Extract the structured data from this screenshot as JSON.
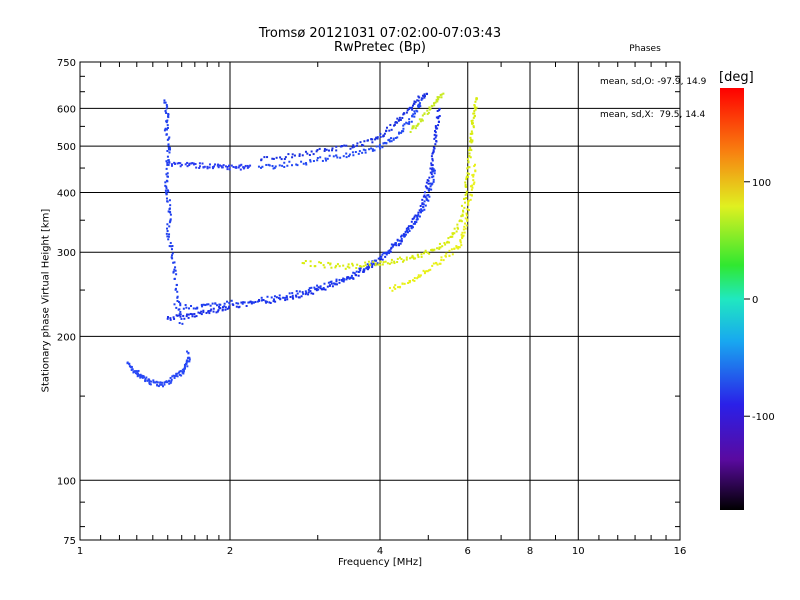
{
  "chart_data": {
    "type": "scatter",
    "title": "Tromsø 20121031 07:02:00-07:03:43",
    "subtitle": "RwPretec (Bp)",
    "xlabel": "Frequency [MHz]",
    "ylabel": "Stationary phase Virtual Height [km]",
    "x_scale": "log",
    "y_scale": "log",
    "xlim": [
      1,
      16
    ],
    "ylim": [
      75,
      750
    ],
    "x_ticks": [
      1,
      2,
      4,
      6,
      8,
      10,
      16
    ],
    "x_tick_labels": [
      "1",
      "2",
      "4",
      "6",
      "8",
      "10",
      "16"
    ],
    "x_minor_ticks": [
      1.1,
      1.2,
      1.3,
      1.4,
      1.5,
      1.6,
      1.7,
      1.8,
      1.9,
      3,
      5,
      7,
      9,
      11,
      12,
      13,
      14,
      15
    ],
    "y_ticks": [
      75,
      100,
      200,
      300,
      400,
      500,
      600,
      750
    ],
    "y_tick_labels": [
      "75",
      "100",
      "200",
      "300",
      "400",
      "500",
      "600",
      "750"
    ],
    "y_minor_ticks": [
      80,
      90,
      150,
      250,
      350,
      450,
      550,
      650,
      700
    ],
    "grid": true,
    "phase_info": {
      "title": "Phases",
      "line_o": "mean, sd,O: -97.9, 14.9",
      "line_x": "mean, sd,X:  79.5, 14.4"
    },
    "colorbar": {
      "label": "[deg]",
      "range": [
        -180,
        180
      ],
      "ticks": [
        100,
        0,
        -100
      ],
      "tick_labels": [
        "100",
        "0",
        "-100"
      ],
      "colormap": "rainbow (black-purple-blue-cyan-green-yellow-red)"
    },
    "series": [
      {
        "phase": -100,
        "color": "#1a2ee8",
        "trace": "O-mode lower branch",
        "points": [
          [
            1.5,
            218
          ],
          [
            1.6,
            220
          ],
          [
            1.7,
            222
          ],
          [
            1.8,
            225
          ],
          [
            1.9,
            228
          ],
          [
            2.0,
            231
          ],
          [
            2.2,
            234
          ],
          [
            2.4,
            237
          ],
          [
            2.6,
            241
          ],
          [
            2.8,
            245
          ],
          [
            3.0,
            250
          ],
          [
            3.2,
            255
          ],
          [
            3.4,
            262
          ],
          [
            3.6,
            270
          ],
          [
            3.8,
            279
          ],
          [
            4.0,
            289
          ],
          [
            4.2,
            302
          ],
          [
            4.4,
            318
          ],
          [
            4.6,
            338
          ],
          [
            4.8,
            366
          ],
          [
            4.95,
            400
          ],
          [
            5.05,
            440
          ],
          [
            5.12,
            480
          ],
          [
            5.18,
            520
          ],
          [
            5.22,
            560
          ],
          [
            5.25,
            600
          ]
        ]
      },
      {
        "phase": -100,
        "color": "#1e3ef0",
        "trace": "O-mode upper branch",
        "points": [
          [
            1.55,
            232
          ],
          [
            1.7,
            230
          ],
          [
            1.85,
            232
          ],
          [
            2.0,
            235
          ],
          [
            2.3,
            238
          ],
          [
            2.6,
            243
          ],
          [
            2.9,
            250
          ],
          [
            3.2,
            258
          ],
          [
            3.5,
            268
          ],
          [
            3.8,
            282
          ],
          [
            4.1,
            298
          ],
          [
            4.4,
            318
          ],
          [
            4.6,
            336
          ],
          [
            4.75,
            352
          ],
          [
            4.9,
            372
          ],
          [
            5.0,
            395
          ],
          [
            5.1,
            425
          ],
          [
            5.15,
            455
          ]
        ]
      },
      {
        "phase": -100,
        "color": "#2248f2",
        "trace": "F2 cusp lower",
        "points": [
          [
            2.3,
            450
          ],
          [
            2.5,
            455
          ],
          [
            2.8,
            462
          ],
          [
            3.1,
            470
          ],
          [
            3.4,
            478
          ],
          [
            3.7,
            487
          ],
          [
            4.0,
            497
          ],
          [
            4.2,
            512
          ],
          [
            4.4,
            535
          ],
          [
            4.6,
            565
          ],
          [
            4.75,
            600
          ],
          [
            4.85,
            625
          ]
        ]
      },
      {
        "phase": -100,
        "color": "#1a30e0",
        "trace": "F2 cusp upper",
        "points": [
          [
            2.3,
            470
          ],
          [
            2.6,
            476
          ],
          [
            2.9,
            484
          ],
          [
            3.2,
            492
          ],
          [
            3.5,
            500
          ],
          [
            3.8,
            510
          ],
          [
            4.0,
            522
          ],
          [
            4.2,
            545
          ],
          [
            4.4,
            570
          ],
          [
            4.6,
            600
          ],
          [
            4.8,
            630
          ],
          [
            5.0,
            640
          ]
        ]
      },
      {
        "phase": -100,
        "color": "#2a3cf0",
        "trace": "Es trace",
        "points": [
          [
            1.5,
            460
          ],
          [
            1.6,
            458
          ],
          [
            1.7,
            456
          ],
          [
            1.8,
            454
          ],
          [
            1.9,
            452
          ],
          [
            2.0,
            450
          ],
          [
            2.1,
            452
          ],
          [
            2.2,
            456
          ]
        ]
      },
      {
        "phase": -100,
        "color": "#2040ee",
        "trace": "vertical spread near 1.5 MHz",
        "points": [
          [
            1.48,
            620
          ],
          [
            1.5,
            580
          ],
          [
            1.49,
            540
          ],
          [
            1.51,
            500
          ],
          [
            1.5,
            460
          ],
          [
            1.49,
            420
          ],
          [
            1.5,
            390
          ],
          [
            1.52,
            360
          ],
          [
            1.5,
            330
          ],
          [
            1.53,
            300
          ],
          [
            1.55,
            270
          ],
          [
            1.57,
            240
          ],
          [
            1.6,
            210
          ]
        ]
      },
      {
        "phase": -100,
        "color": "#2848f5",
        "trace": "low-height cluster",
        "points": [
          [
            1.25,
            175
          ],
          [
            1.28,
            170
          ],
          [
            1.3,
            168
          ],
          [
            1.33,
            165
          ],
          [
            1.36,
            162
          ],
          [
            1.4,
            160
          ],
          [
            1.45,
            158
          ],
          [
            1.5,
            160
          ],
          [
            1.55,
            165
          ],
          [
            1.6,
            168
          ],
          [
            1.62,
            172
          ],
          [
            1.65,
            178
          ],
          [
            1.65,
            185
          ]
        ]
      },
      {
        "phase": 80,
        "color": "#d8ec10",
        "trace": "X-mode lower branch",
        "points": [
          [
            2.8,
            285
          ],
          [
            3.1,
            282
          ],
          [
            3.4,
            280
          ],
          [
            3.7,
            282
          ],
          [
            4.0,
            285
          ],
          [
            4.3,
            288
          ],
          [
            4.6,
            292
          ],
          [
            4.9,
            298
          ],
          [
            5.2,
            305
          ],
          [
            5.5,
            318
          ],
          [
            5.7,
            335
          ],
          [
            5.85,
            360
          ],
          [
            5.95,
            400
          ],
          [
            6.0,
            440
          ],
          [
            6.05,
            480
          ],
          [
            6.1,
            520
          ],
          [
            6.15,
            560
          ],
          [
            6.2,
            600
          ],
          [
            6.25,
            640
          ]
        ]
      },
      {
        "phase": 80,
        "color": "#e8f018",
        "trace": "X-mode upper branch",
        "points": [
          [
            4.2,
            250
          ],
          [
            4.5,
            258
          ],
          [
            4.8,
            268
          ],
          [
            5.1,
            280
          ],
          [
            5.4,
            292
          ],
          [
            5.7,
            305
          ],
          [
            5.85,
            320
          ],
          [
            5.95,
            345
          ],
          [
            6.05,
            380
          ],
          [
            6.15,
            420
          ],
          [
            6.2,
            460
          ]
        ]
      },
      {
        "phase": 80,
        "color": "#c8ea20",
        "trace": "X-mode cusp",
        "points": [
          [
            4.6,
            540
          ],
          [
            4.8,
            560
          ],
          [
            5.0,
            590
          ],
          [
            5.2,
            620
          ],
          [
            5.35,
            650
          ]
        ]
      }
    ]
  }
}
